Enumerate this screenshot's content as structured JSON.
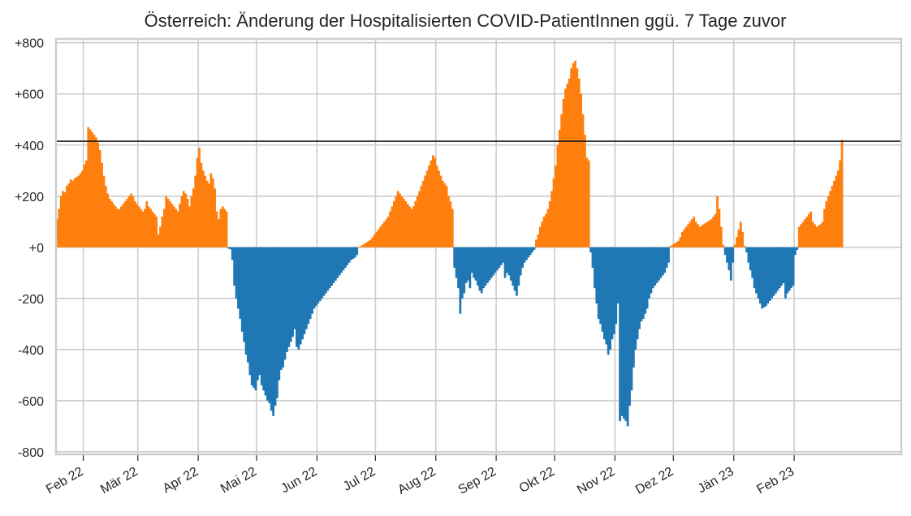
{
  "chart_data": {
    "type": "bar",
    "title": "Österreich: Änderung der Hospitalisierten COVID-PatientInnen ggü. 7 Tage zuvor",
    "xlabel": "",
    "ylabel": "",
    "ylim": [
      -810,
      815
    ],
    "xlim": [
      "2022-01-18",
      "2023-03-28"
    ],
    "grid": true,
    "reference_line": 415,
    "colors": {
      "positive": "#ff7f0e",
      "negative": "#1f77b4",
      "reference_line": "#1a1a1a",
      "grid": "#cccccc"
    },
    "y_ticks": [
      {
        "value": 800,
        "label": "+800"
      },
      {
        "value": 600,
        "label": "+600"
      },
      {
        "value": 400,
        "label": "+400"
      },
      {
        "value": 200,
        "label": "+200"
      },
      {
        "value": 0,
        "label": "+0"
      },
      {
        "value": -200,
        "label": "-200"
      },
      {
        "value": -400,
        "label": "-400"
      },
      {
        "value": -600,
        "label": "-600"
      },
      {
        "value": -800,
        "label": "-800"
      }
    ],
    "x_ticks": [
      {
        "date": "2022-02-01",
        "label": "Feb 22"
      },
      {
        "date": "2022-03-01",
        "label": "Mär 22"
      },
      {
        "date": "2022-04-01",
        "label": "Apr 22"
      },
      {
        "date": "2022-05-01",
        "label": "Mai 22"
      },
      {
        "date": "2022-06-01",
        "label": "Jun 22"
      },
      {
        "date": "2022-07-01",
        "label": "Jul 22"
      },
      {
        "date": "2022-08-01",
        "label": "Aug 22"
      },
      {
        "date": "2022-09-01",
        "label": "Sep 22"
      },
      {
        "date": "2022-10-01",
        "label": "Okt 22"
      },
      {
        "date": "2022-11-01",
        "label": "Nov 22"
      },
      {
        "date": "2022-12-01",
        "label": "Dez 22"
      },
      {
        "date": "2023-01-01",
        "label": "Jän 23"
      },
      {
        "date": "2023-02-01",
        "label": "Feb 23"
      }
    ],
    "series": [
      {
        "start_date": "2022-01-18",
        "frequency": "daily",
        "values": [
          110,
          150,
          200,
          220,
          215,
          240,
          250,
          265,
          260,
          270,
          275,
          280,
          290,
          300,
          325,
          340,
          470,
          460,
          450,
          440,
          430,
          410,
          380,
          330,
          280,
          240,
          210,
          190,
          180,
          170,
          160,
          150,
          150,
          160,
          170,
          180,
          190,
          200,
          210,
          200,
          180,
          170,
          160,
          150,
          140,
          150,
          180,
          160,
          150,
          140,
          130,
          120,
          50,
          80,
          120,
          150,
          200,
          190,
          180,
          170,
          160,
          150,
          140,
          170,
          200,
          220,
          210,
          190,
          160,
          200,
          230,
          280,
          350,
          390,
          330,
          300,
          280,
          260,
          250,
          290,
          270,
          230,
          140,
          110,
          150,
          160,
          150,
          140,
          -5,
          -8,
          -50,
          -150,
          -200,
          -240,
          -280,
          -330,
          -370,
          -420,
          -450,
          -500,
          -540,
          -550,
          -560,
          -520,
          -500,
          -540,
          -560,
          -580,
          -600,
          -610,
          -640,
          -660,
          -620,
          -590,
          -520,
          -480,
          -470,
          -440,
          -410,
          -390,
          -370,
          -350,
          -320,
          -390,
          -400,
          -380,
          -360,
          -340,
          -320,
          -300,
          -280,
          -260,
          -240,
          -230,
          -220,
          -210,
          -200,
          -190,
          -180,
          -170,
          -160,
          -150,
          -140,
          -130,
          -120,
          -110,
          -100,
          -90,
          -80,
          -70,
          -60,
          -50,
          -45,
          -40,
          -30,
          0,
          5,
          10,
          15,
          20,
          25,
          30,
          40,
          50,
          60,
          70,
          80,
          90,
          100,
          110,
          120,
          140,
          160,
          180,
          200,
          220,
          210,
          200,
          190,
          180,
          170,
          160,
          150,
          160,
          180,
          200,
          220,
          240,
          260,
          280,
          300,
          320,
          340,
          360,
          350,
          320,
          300,
          280,
          260,
          250,
          240,
          200,
          180,
          150,
          -80,
          -120,
          -160,
          -260,
          -200,
          -180,
          -140,
          -130,
          -160,
          -100,
          -120,
          -130,
          -150,
          -170,
          -180,
          -160,
          -150,
          -140,
          -130,
          -120,
          -110,
          -100,
          -90,
          -80,
          -70,
          -60,
          -120,
          -100,
          -110,
          -130,
          -150,
          -170,
          -190,
          -150,
          -110,
          -80,
          -60,
          -50,
          -40,
          -30,
          -20,
          -10,
          30,
          50,
          80,
          100,
          120,
          130,
          150,
          180,
          220,
          270,
          320,
          400,
          460,
          520,
          580,
          620,
          640,
          660,
          700,
          720,
          730,
          700,
          660,
          600,
          520,
          440,
          350,
          340,
          -20,
          -80,
          -160,
          -220,
          -280,
          -300,
          -330,
          -360,
          -380,
          -420,
          -400,
          -360,
          -340,
          -300,
          -220,
          -680,
          -660,
          -670,
          -680,
          -700,
          -620,
          -560,
          -470,
          -400,
          -360,
          -320,
          -290,
          -280,
          -260,
          -240,
          -200,
          -180,
          -160,
          -150,
          -140,
          -130,
          -120,
          -110,
          -100,
          -80,
          -60,
          5,
          10,
          15,
          20,
          25,
          40,
          60,
          70,
          80,
          90,
          100,
          110,
          120,
          100,
          90,
          80,
          85,
          90,
          95,
          100,
          105,
          110,
          120,
          130,
          200,
          150,
          80,
          10,
          -30,
          -60,
          -90,
          -130,
          -60,
          10,
          40,
          70,
          100,
          60,
          5,
          -20,
          -60,
          -90,
          -120,
          -160,
          -180,
          -200,
          -220,
          -240,
          -235,
          -230,
          -220,
          -210,
          -200,
          -190,
          -180,
          -170,
          -160,
          -150,
          -140,
          -200,
          -180,
          -170,
          -160,
          -150,
          -30,
          -10,
          80,
          90,
          100,
          110,
          120,
          130,
          140,
          100,
          90,
          80,
          85,
          90,
          100,
          150,
          180,
          200,
          220,
          240,
          260,
          280,
          300,
          340,
          420
        ]
      }
    ]
  }
}
